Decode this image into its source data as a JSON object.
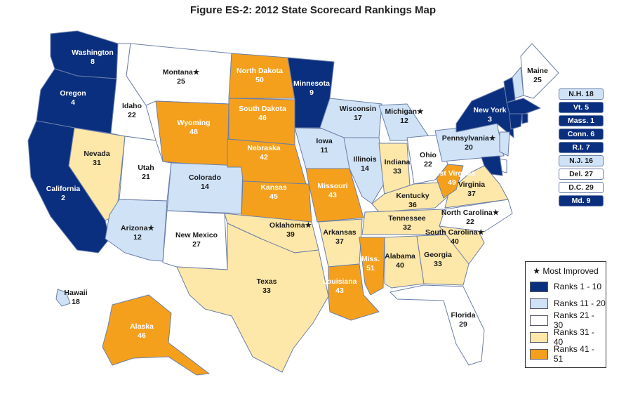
{
  "title": "Figure ES-2:  2012 State Scorecard Rankings Map",
  "colors": {
    "tier1": "#0b2f7f",
    "tier2": "#cfe2f6",
    "tier3": "#ffffff",
    "tier4": "#fde7a9",
    "tier5": "#f5a01d",
    "border": "#6b7fa8"
  },
  "legend": {
    "heading": "★ Most Improved",
    "items": [
      {
        "label": "Ranks 1 - 10",
        "color": "#0b2f7f"
      },
      {
        "label": "Ranks 11 - 20",
        "color": "#cfe2f6"
      },
      {
        "label": "Ranks 21 - 30",
        "color": "#ffffff"
      },
      {
        "label": "Ranks 31 - 40",
        "color": "#fde7a9"
      },
      {
        "label": "Ranks 41 - 51",
        "color": "#f5a01d"
      }
    ]
  },
  "states": [
    {
      "name": "Washington",
      "rank": "8",
      "tier": 1
    },
    {
      "name": "Oregon",
      "rank": "4",
      "tier": 1
    },
    {
      "name": "California",
      "rank": "2",
      "tier": 1
    },
    {
      "name": "Nevada",
      "rank": "31",
      "tier": 4
    },
    {
      "name": "Idaho",
      "rank": "22",
      "tier": 3
    },
    {
      "name": "Montana",
      "rank": "25",
      "tier": 3,
      "improved": true
    },
    {
      "name": "Wyoming",
      "rank": "48",
      "tier": 5
    },
    {
      "name": "Utah",
      "rank": "21",
      "tier": 3
    },
    {
      "name": "Arizona",
      "rank": "12",
      "tier": 2,
      "improved": true
    },
    {
      "name": "Colorado",
      "rank": "14",
      "tier": 2
    },
    {
      "name": "New Mexico",
      "rank": "27",
      "tier": 3
    },
    {
      "name": "North Dakota",
      "rank": "50",
      "tier": 5
    },
    {
      "name": "South Dakota",
      "rank": "46",
      "tier": 5
    },
    {
      "name": "Nebraska",
      "rank": "42",
      "tier": 5
    },
    {
      "name": "Kansas",
      "rank": "45",
      "tier": 5
    },
    {
      "name": "Oklahoma",
      "rank": "39",
      "tier": 4,
      "improved": true
    },
    {
      "name": "Texas",
      "rank": "33",
      "tier": 4
    },
    {
      "name": "Minnesota",
      "rank": "9",
      "tier": 1
    },
    {
      "name": "Iowa",
      "rank": "11",
      "tier": 2
    },
    {
      "name": "Missouri",
      "rank": "43",
      "tier": 5
    },
    {
      "name": "Arkansas",
      "rank": "37",
      "tier": 4
    },
    {
      "name": "Louisiana",
      "rank": "43",
      "tier": 5
    },
    {
      "name": "Wisconsin",
      "rank": "17",
      "tier": 2
    },
    {
      "name": "Illinois",
      "rank": "14",
      "tier": 2
    },
    {
      "name": "Michigan",
      "rank": "12",
      "tier": 2,
      "improved": true
    },
    {
      "name": "Indiana",
      "rank": "33",
      "tier": 4
    },
    {
      "name": "Ohio",
      "rank": "22",
      "tier": 3
    },
    {
      "name": "Kentucky",
      "rank": "36",
      "tier": 4
    },
    {
      "name": "Tennessee",
      "rank": "32",
      "tier": 4
    },
    {
      "name": "Miss.",
      "rank": "51",
      "tier": 5
    },
    {
      "name": "Alabama",
      "rank": "40",
      "tier": 4
    },
    {
      "name": "Georgia",
      "rank": "33",
      "tier": 4
    },
    {
      "name": "Florida",
      "rank": "29",
      "tier": 3
    },
    {
      "name": "South Carolina",
      "rank": "40",
      "tier": 4,
      "improved": true
    },
    {
      "name": "North Carolina",
      "rank": "22",
      "tier": 3,
      "improved": true
    },
    {
      "name": "Virginia",
      "rank": "37",
      "tier": 4
    },
    {
      "name": "West Virginia",
      "rank": "49",
      "tier": 5
    },
    {
      "name": "Pennsylvania",
      "rank": "20",
      "tier": 2,
      "improved": true
    },
    {
      "name": "New York",
      "rank": "3",
      "tier": 1
    },
    {
      "name": "Maine",
      "rank": "25",
      "tier": 3
    },
    {
      "name": "Alaska",
      "rank": "46",
      "tier": 5
    },
    {
      "name": "Hawaii",
      "rank": "18",
      "tier": 2
    }
  ],
  "northeast_boxes": [
    {
      "label": "N.H. 18",
      "tier": 2
    },
    {
      "label": "Vt. 5",
      "tier": 1
    },
    {
      "label": "Mass. 1",
      "tier": 1
    },
    {
      "label": "Conn. 6",
      "tier": 1
    },
    {
      "label": "R.I. 7",
      "tier": 1
    },
    {
      "label": "N.J. 16",
      "tier": 2
    },
    {
      "label": "Del. 27",
      "tier": 3
    },
    {
      "label": "D.C. 29",
      "tier": 3
    },
    {
      "label": "Md. 9",
      "tier": 1
    }
  ]
}
